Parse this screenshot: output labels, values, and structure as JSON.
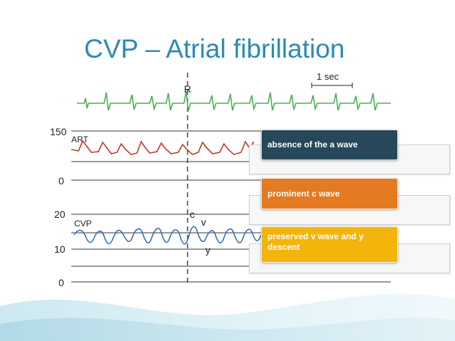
{
  "slide": {
    "title": "CVP – Atrial fibrillation"
  },
  "figure": {
    "scale_label": "1 sec",
    "r_marker": "R",
    "art_label": "ART",
    "cvp_label": "CVP",
    "c_marker": "c",
    "v_marker": "v",
    "y_marker": "y",
    "art_ticks": [
      "150",
      "0"
    ],
    "cvp_ticks": [
      "20",
      "10",
      "0"
    ]
  },
  "callouts": [
    {
      "label": "absence of the a wave",
      "color": "#27485a"
    },
    {
      "label": "prominent c wave",
      "color": "#e47a21"
    },
    {
      "label": "preserved v wave and y descent",
      "color": "#f3b40c"
    }
  ],
  "colors": {
    "title": "#2b8bb3",
    "ecg_trace": "#4caf50",
    "art_trace": "#c0392b",
    "cvp_trace": "#3a6fb5"
  }
}
